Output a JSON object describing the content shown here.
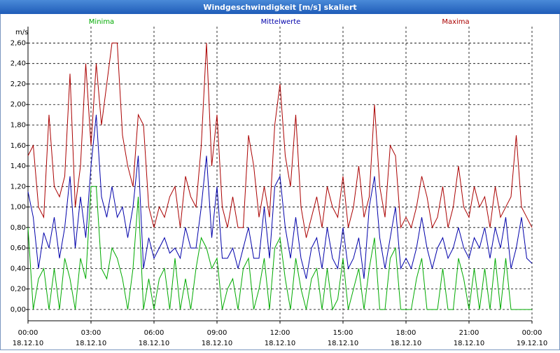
{
  "chart_data": {
    "type": "line",
    "title": "Windgeschwindigkeit [m/s] skaliert",
    "y_label": "m/s",
    "x": [
      0,
      0.25,
      0.5,
      0.75,
      1,
      1.25,
      1.5,
      1.75,
      2,
      2.25,
      2.5,
      2.75,
      3,
      3.25,
      3.5,
      3.75,
      4,
      4.25,
      4.5,
      4.75,
      5,
      5.25,
      5.5,
      5.75,
      6,
      6.25,
      6.5,
      6.75,
      7,
      7.25,
      7.5,
      7.75,
      8,
      8.25,
      8.5,
      8.75,
      9,
      9.25,
      9.5,
      9.75,
      10,
      10.25,
      10.5,
      10.75,
      11,
      11.25,
      11.5,
      11.75,
      12,
      12.25,
      12.5,
      12.75,
      13,
      13.25,
      13.5,
      13.75,
      14,
      14.25,
      14.5,
      14.75,
      15,
      15.25,
      15.5,
      15.75,
      16,
      16.25,
      16.5,
      16.75,
      17,
      17.25,
      17.5,
      17.75,
      18,
      18.25,
      18.5,
      18.75,
      19,
      19.25,
      19.5,
      19.75,
      20,
      20.25,
      20.5,
      20.75,
      21,
      21.25,
      21.5,
      21.75,
      22,
      22.25,
      22.5,
      22.75,
      23,
      23.25,
      23.5,
      23.75,
      24
    ],
    "series": [
      {
        "name": "Minima",
        "color": "#00aa00",
        "values": [
          0.8,
          0.0,
          0.3,
          0.4,
          0.0,
          0.4,
          0.0,
          0.5,
          0.3,
          0.0,
          0.5,
          0.3,
          1.2,
          1.2,
          0.4,
          0.3,
          0.6,
          0.5,
          0.3,
          0.0,
          0.4,
          1.1,
          0.0,
          0.3,
          0.0,
          0.3,
          0.4,
          0.0,
          0.5,
          0.0,
          0.3,
          0.0,
          0.4,
          0.7,
          0.6,
          0.4,
          0.5,
          0.0,
          0.2,
          0.3,
          0.0,
          0.4,
          0.5,
          0.0,
          0.2,
          0.5,
          0.0,
          0.6,
          0.7,
          0.3,
          0.0,
          0.5,
          0.2,
          0.0,
          0.3,
          0.4,
          0.0,
          0.4,
          0.0,
          0.1,
          0.5,
          0.0,
          0.2,
          0.4,
          0.0,
          0.4,
          0.7,
          0.0,
          0.0,
          0.5,
          0.6,
          0.0,
          0.0,
          0.0,
          0.3,
          0.5,
          0.0,
          0.0,
          0.0,
          0.4,
          0.0,
          0.0,
          0.5,
          0.3,
          0.0,
          0.4,
          0.0,
          0.4,
          0.0,
          0.5,
          0.0,
          0.5,
          0.0,
          0.0,
          0.0,
          0.0,
          0.0
        ]
      },
      {
        "name": "Mittelwerte",
        "color": "#0000aa",
        "values": [
          1.15,
          0.9,
          0.4,
          0.75,
          0.6,
          0.9,
          0.5,
          0.8,
          1.3,
          0.6,
          1.1,
          0.7,
          1.4,
          1.9,
          1.1,
          0.9,
          1.2,
          0.9,
          1.0,
          0.7,
          1.0,
          1.5,
          0.4,
          0.7,
          0.5,
          0.6,
          0.7,
          0.55,
          0.6,
          0.5,
          0.8,
          0.6,
          0.6,
          1.0,
          1.5,
          0.7,
          1.2,
          0.5,
          0.5,
          0.6,
          0.4,
          0.6,
          0.8,
          0.5,
          0.5,
          1.0,
          0.5,
          1.2,
          1.3,
          0.8,
          0.5,
          0.9,
          0.5,
          0.3,
          0.6,
          0.7,
          0.4,
          0.8,
          0.5,
          0.4,
          0.8,
          0.4,
          0.5,
          0.7,
          0.3,
          1.0,
          1.3,
          0.7,
          0.4,
          0.7,
          1.0,
          0.4,
          0.5,
          0.4,
          0.6,
          0.9,
          0.6,
          0.4,
          0.6,
          0.7,
          0.5,
          0.6,
          0.8,
          0.6,
          0.5,
          0.7,
          0.6,
          0.8,
          0.5,
          0.8,
          0.6,
          0.9,
          0.4,
          0.6,
          0.9,
          0.5,
          0.45
        ]
      },
      {
        "name": "Maxima",
        "color": "#aa0000",
        "values": [
          1.5,
          1.6,
          1.0,
          0.9,
          1.9,
          1.2,
          1.1,
          1.3,
          2.3,
          1.0,
          1.4,
          2.4,
          1.6,
          2.4,
          1.8,
          2.2,
          2.6,
          2.6,
          1.7,
          1.4,
          1.2,
          1.9,
          1.8,
          1.0,
          0.8,
          1.0,
          0.9,
          1.1,
          1.2,
          0.8,
          1.3,
          1.1,
          1.0,
          1.6,
          2.6,
          1.4,
          1.9,
          1.0,
          0.8,
          1.1,
          0.8,
          0.8,
          1.7,
          1.4,
          0.9,
          1.2,
          0.9,
          1.8,
          2.2,
          1.5,
          1.2,
          1.9,
          1.0,
          0.7,
          0.9,
          1.1,
          0.8,
          1.2,
          1.0,
          0.9,
          1.3,
          0.8,
          1.0,
          1.4,
          0.9,
          1.1,
          2.0,
          1.2,
          0.9,
          1.6,
          1.5,
          0.8,
          0.9,
          0.8,
          1.0,
          1.3,
          1.1,
          0.8,
          0.9,
          1.2,
          0.8,
          1.0,
          1.4,
          1.0,
          0.9,
          1.2,
          1.0,
          1.1,
          0.8,
          1.2,
          0.9,
          1.0,
          1.1,
          1.7,
          1.0,
          0.9,
          0.8
        ]
      }
    ],
    "xlim": [
      0,
      24
    ],
    "xticks": [
      {
        "value": 0,
        "label": "00:00",
        "date": "18.12.10"
      },
      {
        "value": 3,
        "label": "03:00",
        "date": "18.12.10"
      },
      {
        "value": 6,
        "label": "06:00",
        "date": "18.12.10"
      },
      {
        "value": 9,
        "label": "09:00",
        "date": "18.12.10"
      },
      {
        "value": 12,
        "label": "12:00",
        "date": "18.12.10"
      },
      {
        "value": 15,
        "label": "15:00",
        "date": "18.12.10"
      },
      {
        "value": 18,
        "label": "18:00",
        "date": "18.12.10"
      },
      {
        "value": 21,
        "label": "21:00",
        "date": "18.12.10"
      },
      {
        "value": 24,
        "label": "00:00",
        "date": "19.12.10"
      }
    ],
    "ylim": [
      -0.11,
      2.76
    ],
    "yticks": [
      {
        "value": 0,
        "label": "0,00"
      },
      {
        "value": 0.2,
        "label": "0,20"
      },
      {
        "value": 0.4,
        "label": "0,40"
      },
      {
        "value": 0.6,
        "label": "0,60"
      },
      {
        "value": 0.8,
        "label": "0,80"
      },
      {
        "value": 1,
        "label": "1,00"
      },
      {
        "value": 1.2,
        "label": "1,20"
      },
      {
        "value": 1.4,
        "label": "1,40"
      },
      {
        "value": 1.6,
        "label": "1,60"
      },
      {
        "value": 1.8,
        "label": "1,80"
      },
      {
        "value": 2,
        "label": "2,00"
      },
      {
        "value": 2.2,
        "label": "2,20"
      },
      {
        "value": 2.4,
        "label": "2,40"
      },
      {
        "value": 2.6,
        "label": "2,60"
      }
    ],
    "grid": true
  }
}
